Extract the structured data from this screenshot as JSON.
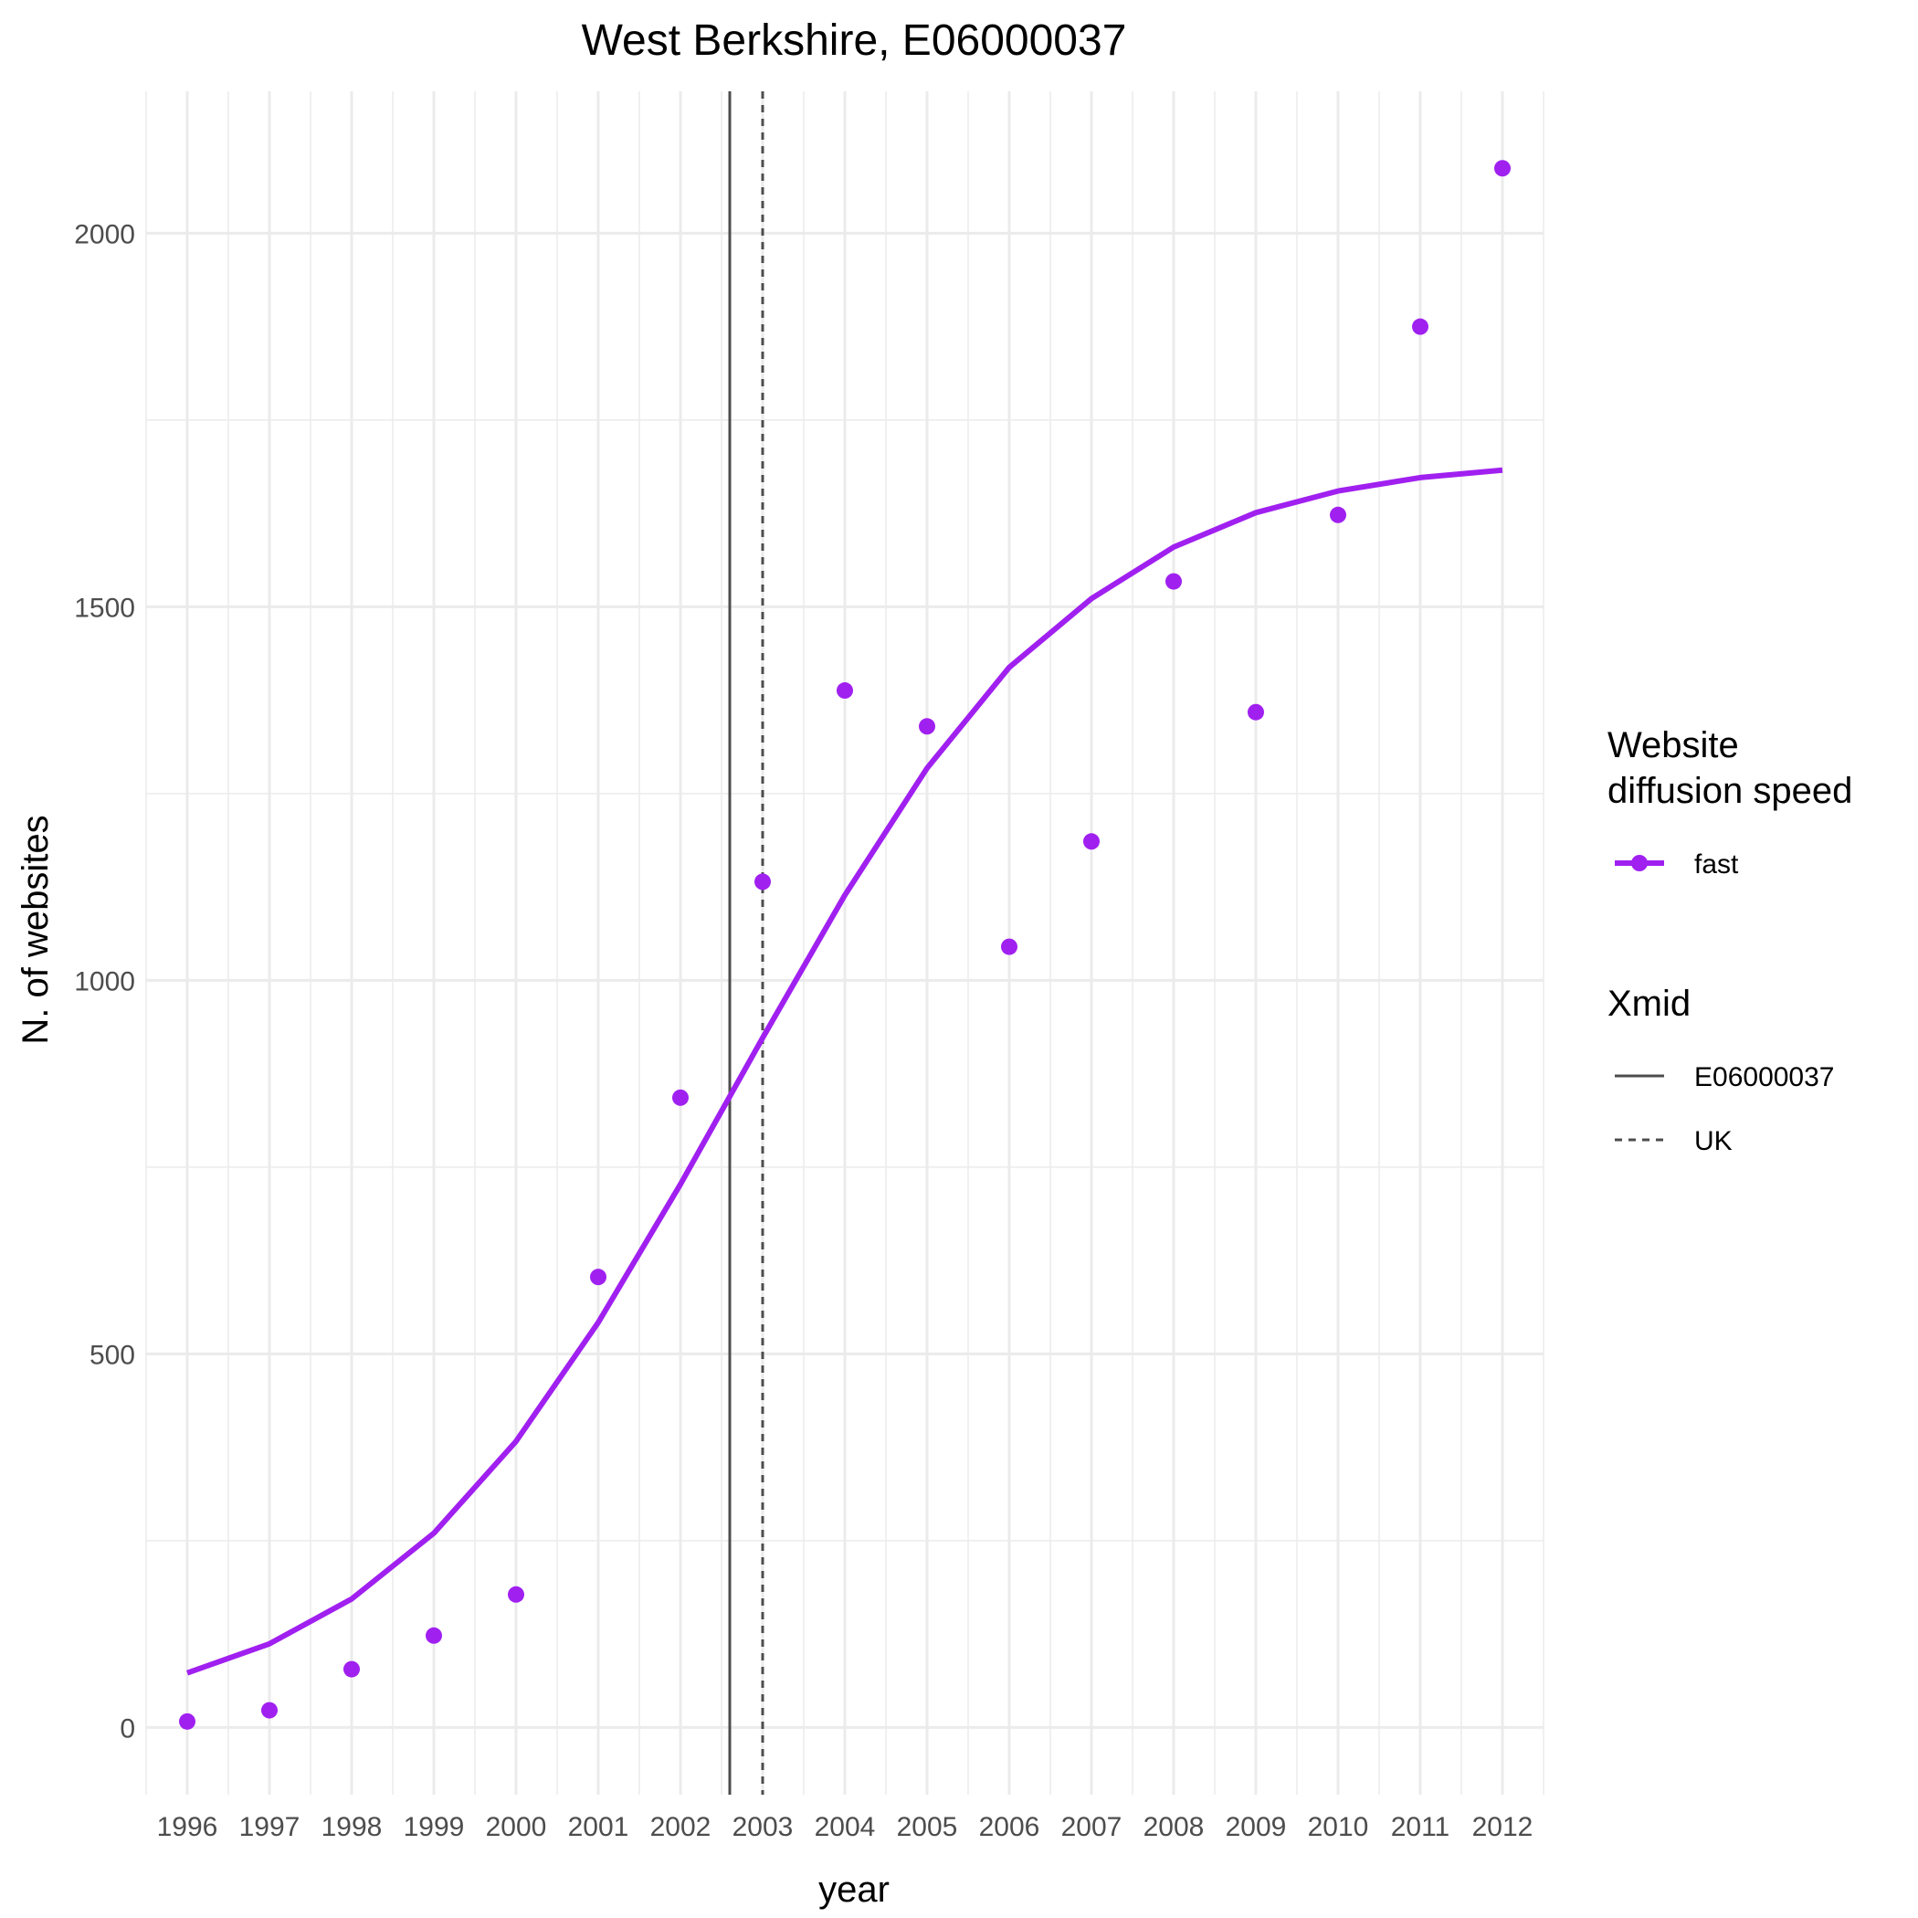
{
  "chart_data": {
    "type": "scatter",
    "title": "West Berkshire, E06000037",
    "xlabel": "year",
    "ylabel": "N. of websites",
    "x_ticks": [
      "1996",
      "1997",
      "1998",
      "1999",
      "2000",
      "2001",
      "2002",
      "2003",
      "2004",
      "2005",
      "2006",
      "2007",
      "2008",
      "2009",
      "2010",
      "2011",
      "2012"
    ],
    "y_ticks": [
      "0",
      "500",
      "1000",
      "1500",
      "2000"
    ],
    "xlim": [
      1995.5,
      2012.5
    ],
    "ylim": [
      -90,
      2190
    ],
    "grid": true,
    "series": [
      {
        "name": "fast",
        "kind": "points",
        "color": "#a020f0",
        "x": [
          1996,
          1997,
          1998,
          1999,
          2000,
          2001,
          2002,
          2003,
          2004,
          2005,
          2006,
          2007,
          2008,
          2009,
          2010,
          2011,
          2012
        ],
        "y": [
          8,
          23,
          78,
          123,
          178,
          603,
          843,
          1132,
          1388,
          1340,
          1045,
          1186,
          1534,
          1359,
          1623,
          1875,
          2087
        ]
      },
      {
        "name": "fast",
        "kind": "fit",
        "color": "#a020f0",
        "x": [
          1996,
          1997,
          1998,
          1999,
          2000,
          2001,
          2002,
          2003,
          2004,
          2005,
          2006,
          2007,
          2008,
          2009,
          2010,
          2011,
          2012
        ],
        "y": [
          73,
          112,
          172,
          260,
          383,
          542,
          727,
          923,
          1114,
          1284,
          1419,
          1511,
          1580,
          1626,
          1655,
          1673,
          1683
        ]
      }
    ],
    "vlines": [
      {
        "label": "E06000037",
        "x": 2002.6,
        "style": "solid",
        "color": "#4d4d4d"
      },
      {
        "label": "UK",
        "x": 2003.0,
        "style": "dashed",
        "color": "#4d4d4d"
      }
    ],
    "legend": {
      "placement": "right",
      "groups": [
        {
          "title": "Website\ndiffusion speed",
          "title_lines": [
            "Website",
            "diffusion speed"
          ],
          "items": [
            "fast"
          ]
        },
        {
          "title": "Xmid",
          "title_lines": [
            "Xmid"
          ],
          "items": [
            "E06000037",
            "UK"
          ]
        }
      ]
    }
  }
}
